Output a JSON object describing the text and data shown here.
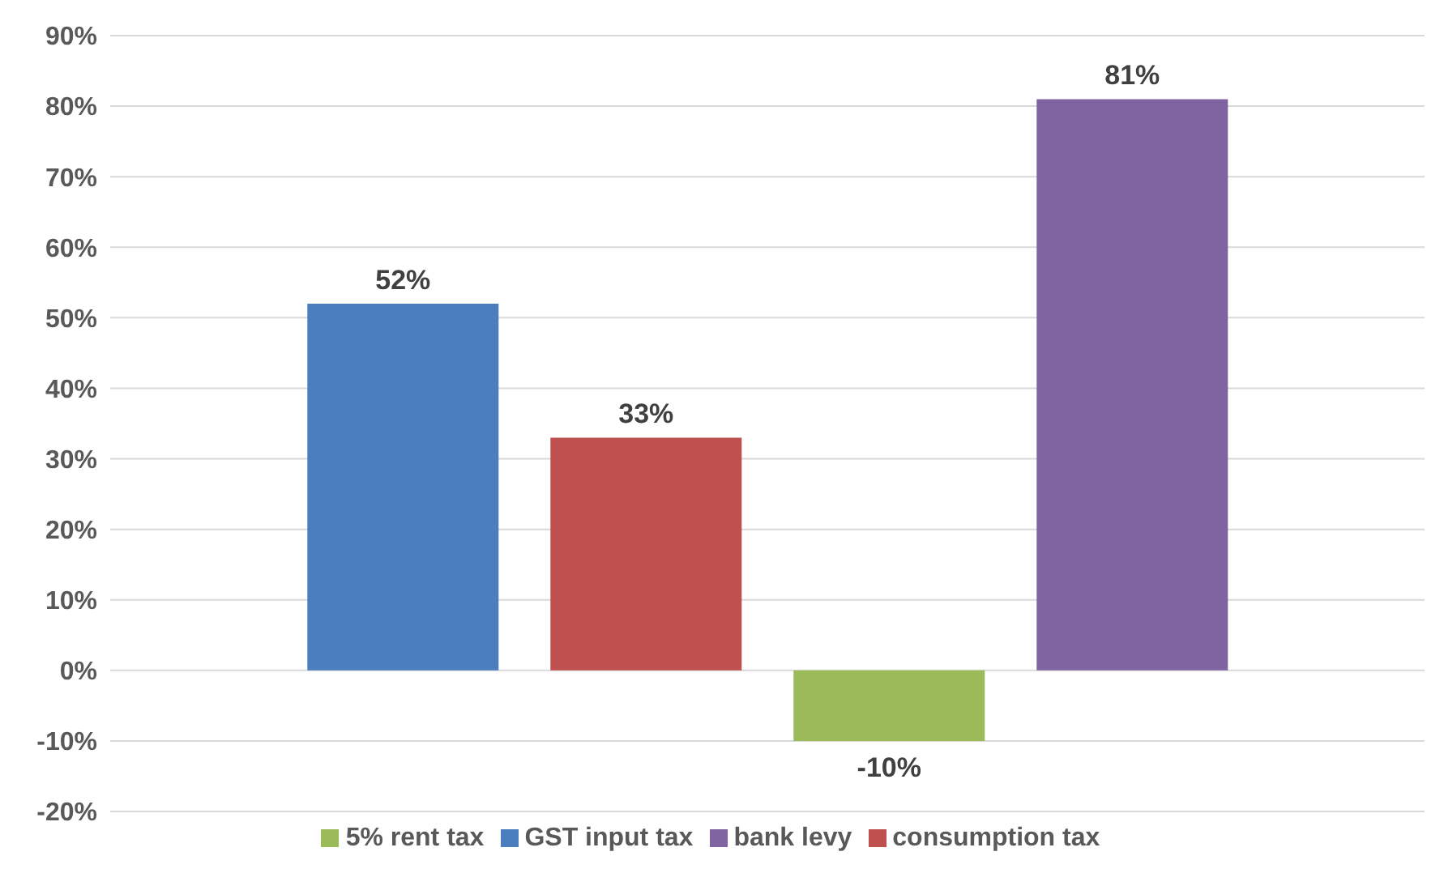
{
  "chart_data": {
    "type": "bar",
    "categories": [
      null
    ],
    "series": [
      {
        "name": "GST input tax",
        "color": "#4a7ebf",
        "values": [
          52
        ],
        "value_labels": [
          "52%"
        ]
      },
      {
        "name": "consumption tax",
        "color": "#c0504d",
        "values": [
          33
        ],
        "value_labels": [
          "33%"
        ]
      },
      {
        "name": "5% rent tax",
        "color": "#9bbb59",
        "values": [
          -10
        ],
        "value_labels": [
          "-10%"
        ]
      },
      {
        "name": "bank levy",
        "color": "#8064a2",
        "values": [
          81
        ],
        "value_labels": [
          "81%"
        ]
      }
    ],
    "ylim": [
      -20,
      90
    ],
    "yticks": [
      {
        "value": -20,
        "label": "-20%"
      },
      {
        "value": -10,
        "label": "-10%"
      },
      {
        "value": 0,
        "label": "0%"
      },
      {
        "value": 10,
        "label": "10%"
      },
      {
        "value": 20,
        "label": "20%"
      },
      {
        "value": 30,
        "label": "30%"
      },
      {
        "value": 40,
        "label": "40%"
      },
      {
        "value": 50,
        "label": "50%"
      },
      {
        "value": 60,
        "label": "60%"
      },
      {
        "value": 70,
        "label": "70%"
      },
      {
        "value": 80,
        "label": "80%"
      },
      {
        "value": 90,
        "label": "90%"
      }
    ],
    "grid": "y",
    "legend": "bottom"
  }
}
